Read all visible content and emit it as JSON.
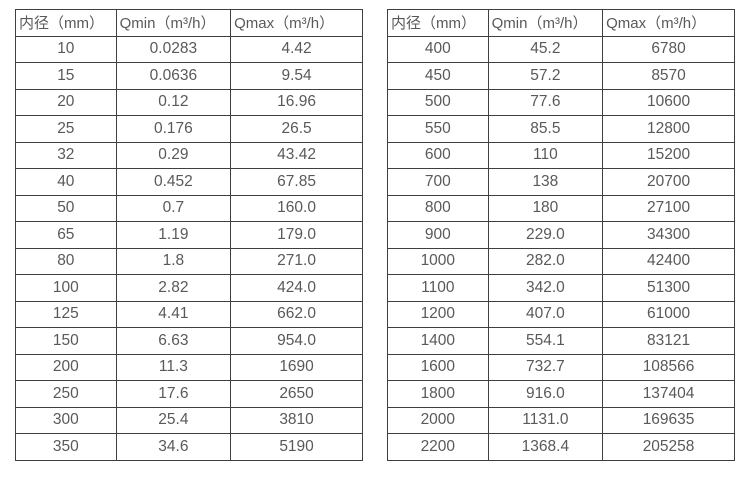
{
  "colors": {
    "background": "#ffffff",
    "border": "#3f3f3f",
    "text": "#595959"
  },
  "tables": [
    {
      "name": "flow-spec-small-diameters",
      "headers": [
        "内径（mm）",
        "Qmin（m³/h）",
        "Qmax（m³/h）"
      ],
      "rows": [
        [
          "10",
          "0.0283",
          "4.42"
        ],
        [
          "15",
          "0.0636",
          "9.54"
        ],
        [
          "20",
          "0.12",
          "16.96"
        ],
        [
          "25",
          "0.176",
          "26.5"
        ],
        [
          "32",
          "0.29",
          "43.42"
        ],
        [
          "40",
          "0.452",
          "67.85"
        ],
        [
          "50",
          "0.7",
          "160.0"
        ],
        [
          "65",
          "1.19",
          "179.0"
        ],
        [
          "80",
          "1.8",
          "271.0"
        ],
        [
          "100",
          "2.82",
          "424.0"
        ],
        [
          "125",
          "4.41",
          "662.0"
        ],
        [
          "150",
          "6.63",
          "954.0"
        ],
        [
          "200",
          "11.3",
          "1690"
        ],
        [
          "250",
          "17.6",
          "2650"
        ],
        [
          "300",
          "25.4",
          "3810"
        ],
        [
          "350",
          "34.6",
          "5190"
        ]
      ]
    },
    {
      "name": "flow-spec-large-diameters",
      "headers": [
        "内径（mm）",
        "Qmin（m³/h）",
        "Qmax（m³/h）"
      ],
      "rows": [
        [
          "400",
          "45.2",
          "6780"
        ],
        [
          "450",
          "57.2",
          "8570"
        ],
        [
          "500",
          "77.6",
          "10600"
        ],
        [
          "550",
          "85.5",
          "12800"
        ],
        [
          "600",
          "110",
          "15200"
        ],
        [
          "700",
          "138",
          "20700"
        ],
        [
          "800",
          "180",
          "27100"
        ],
        [
          "900",
          "229.0",
          "34300"
        ],
        [
          "1000",
          "282.0",
          "42400"
        ],
        [
          "1100",
          "342.0",
          "51300"
        ],
        [
          "1200",
          "407.0",
          "61000"
        ],
        [
          "1400",
          "554.1",
          "83121"
        ],
        [
          "1600",
          "732.7",
          "108566"
        ],
        [
          "1800",
          "916.0",
          "137404"
        ],
        [
          "2000",
          "1131.0",
          "169635"
        ],
        [
          "2200",
          "1368.4",
          "205258"
        ]
      ]
    }
  ]
}
